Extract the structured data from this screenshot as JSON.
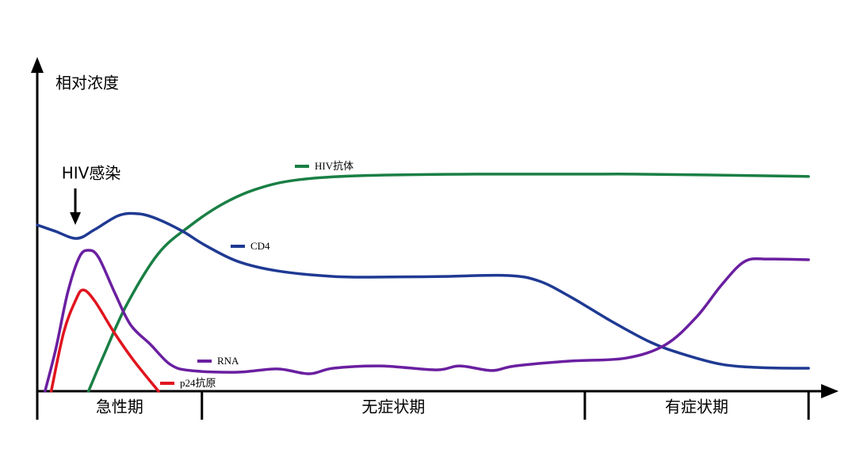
{
  "chart_data": {
    "type": "line",
    "y_label": "相对浓度",
    "annotation": {
      "text": "HIV感染",
      "x": 4.9
    },
    "xlim": [
      0,
      100
    ],
    "ylim": [
      0,
      100
    ],
    "phases": [
      "急性期",
      "无症状期",
      "有症状期"
    ],
    "phase_bounds": [
      0,
      21.2,
      70.5,
      99.3
    ],
    "series": [
      {
        "name": "HIV抗体",
        "color": "#1a7f45",
        "x": [
          6.6,
          8.5,
          11.5,
          15.6,
          19.7,
          23.8,
          27.9,
          33.0,
          41.1,
          56.4,
          76.8,
          99.3
        ],
        "values": [
          0,
          10.6,
          26.3,
          42.0,
          50.5,
          57.0,
          61.4,
          64.3,
          65.7,
          66.2,
          66.2,
          65.5
        ]
      },
      {
        "name": "CD4",
        "color": "#1f3a93",
        "x": [
          0,
          2.3,
          5.1,
          7.4,
          10.5,
          13.1,
          15.6,
          18.7,
          21.7,
          25.8,
          30.9,
          38.1,
          44.2,
          52.3,
          60.5,
          64.6,
          68.7,
          73.8,
          78.9,
          83.0,
          88.1,
          93.2,
          99.3
        ],
        "values": [
          50.7,
          48.8,
          46.6,
          49.3,
          53.6,
          54.1,
          52.4,
          48.8,
          44.4,
          39.6,
          36.7,
          35.0,
          34.8,
          35.0,
          35.3,
          33.6,
          28.7,
          21.5,
          15.0,
          11.4,
          8.2,
          7.2,
          7.0
        ]
      },
      {
        "name": "RNA",
        "color": "#6a1fa0",
        "x": [
          1.0,
          2.4,
          3.9,
          5.4,
          6.6,
          7.9,
          10.0,
          12.0,
          14.6,
          17.1,
          19.7,
          25.8,
          30.9,
          35.0,
          38.1,
          44.2,
          51.3,
          54.4,
          58.5,
          61.5,
          68.7,
          75.8,
          80.9,
          84.9,
          88.1,
          91.1,
          94.2,
          99.3
        ],
        "values": [
          0,
          13.0,
          29.9,
          40.8,
          43.0,
          40.8,
          29.9,
          20.3,
          14.2,
          8.2,
          6.3,
          5.8,
          6.8,
          5.3,
          7.0,
          7.7,
          6.5,
          7.7,
          6.3,
          7.7,
          9.2,
          10.1,
          14.2,
          22.7,
          32.4,
          39.6,
          40.3,
          40.1
        ]
      },
      {
        "name": "p24抗原",
        "color": "#e0141e",
        "x": [
          1.8,
          3.4,
          4.9,
          5.9,
          7.4,
          9.9,
          12.4,
          15.6
        ],
        "values": [
          0,
          17.9,
          27.5,
          30.9,
          27.5,
          17.9,
          9.4,
          0
        ]
      }
    ]
  }
}
